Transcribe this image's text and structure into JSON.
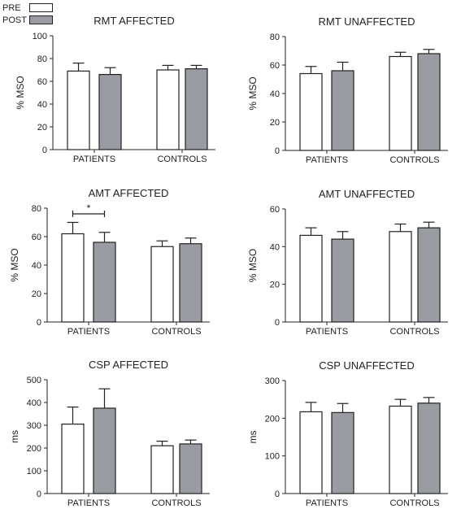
{
  "legend": {
    "pre_label": "PRE",
    "post_label": "POST",
    "pre_color": "#ffffff",
    "post_color": "#9a9ca3"
  },
  "chart_data": [
    {
      "type": "bar",
      "title": "RMT AFFECTED",
      "ylabel": "% MSO",
      "ylim": [
        0,
        100
      ],
      "yticks": [
        0,
        20,
        40,
        60,
        80,
        100
      ],
      "categories": [
        "PATIENTS",
        "CONTROLS"
      ],
      "series": [
        {
          "name": "PRE",
          "values": [
            69,
            70
          ],
          "errors": [
            7,
            4
          ]
        },
        {
          "name": "POST",
          "values": [
            66,
            71
          ],
          "errors": [
            6,
            3
          ]
        }
      ],
      "annotations": []
    },
    {
      "type": "bar",
      "title": "RMT UNAFFECTED",
      "ylabel": "% MSO",
      "ylim": [
        0,
        80
      ],
      "yticks": [
        0,
        20,
        40,
        60,
        80
      ],
      "categories": [
        "PATIENTS",
        "CONTROLS"
      ],
      "series": [
        {
          "name": "PRE",
          "values": [
            54,
            66
          ],
          "errors": [
            5,
            3
          ]
        },
        {
          "name": "POST",
          "values": [
            56,
            68
          ],
          "errors": [
            6,
            3
          ]
        }
      ],
      "annotations": []
    },
    {
      "type": "bar",
      "title": "AMT AFFECTED",
      "ylabel": "% MSO",
      "ylim": [
        0,
        80
      ],
      "yticks": [
        0,
        20,
        40,
        60,
        80
      ],
      "categories": [
        "PATIENTS",
        "CONTROLS"
      ],
      "series": [
        {
          "name": "PRE",
          "values": [
            62,
            53
          ],
          "errors": [
            8,
            4
          ]
        },
        {
          "name": "POST",
          "values": [
            56,
            55
          ],
          "errors": [
            7,
            4
          ]
        }
      ],
      "annotations": [
        {
          "type": "bracket",
          "category": "PATIENTS",
          "at": 76,
          "text": "*"
        }
      ]
    },
    {
      "type": "bar",
      "title": "AMT UNAFFECTED",
      "ylabel": "% MSO",
      "ylim": [
        0,
        60
      ],
      "yticks": [
        0,
        20,
        40,
        60
      ],
      "categories": [
        "PATIENTS",
        "CONTROLS"
      ],
      "series": [
        {
          "name": "PRE",
          "values": [
            46,
            48
          ],
          "errors": [
            4,
            4
          ]
        },
        {
          "name": "POST",
          "values": [
            44,
            50
          ],
          "errors": [
            4,
            3
          ]
        }
      ],
      "annotations": []
    },
    {
      "type": "bar",
      "title": "CSP AFFECTED",
      "ylabel": "ms",
      "ylim": [
        0,
        500
      ],
      "yticks": [
        0,
        100,
        200,
        300,
        400,
        500
      ],
      "categories": [
        "PATIENTS",
        "CONTROLS"
      ],
      "series": [
        {
          "name": "PRE",
          "values": [
            305,
            210
          ],
          "errors": [
            75,
            20
          ]
        },
        {
          "name": "POST",
          "values": [
            375,
            218
          ],
          "errors": [
            85,
            17
          ]
        }
      ],
      "annotations": []
    },
    {
      "type": "bar",
      "title": "CSP UNAFFECTED",
      "ylabel": "ms",
      "ylim": [
        0,
        300
      ],
      "yticks": [
        0,
        100,
        200,
        300
      ],
      "categories": [
        "PATIENTS",
        "CONTROLS"
      ],
      "series": [
        {
          "name": "PRE",
          "values": [
            217,
            232
          ],
          "errors": [
            25,
            18
          ]
        },
        {
          "name": "POST",
          "values": [
            215,
            240
          ],
          "errors": [
            24,
            15
          ]
        }
      ],
      "annotations": []
    }
  ]
}
